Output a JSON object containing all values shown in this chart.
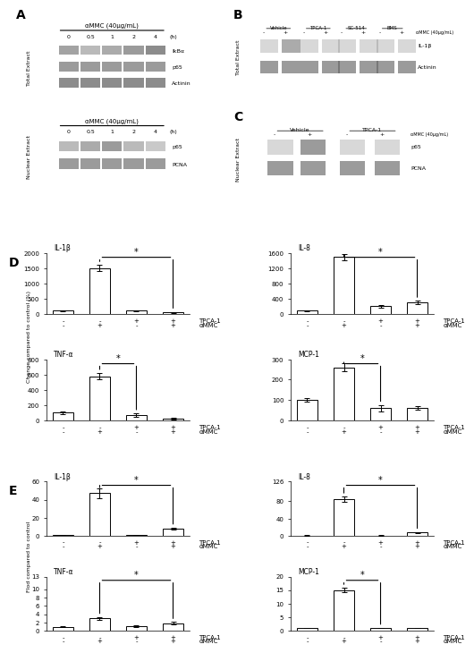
{
  "panel_A": {
    "label": "A",
    "total_extract_label": "Total Extract",
    "nuclear_extract_label": "Nuclear Extract",
    "title_top": "αMMC (40µg/mL)",
    "title_bottom": "αMMC (40µg/mL)",
    "timepoints": [
      "0",
      "0.5",
      "1",
      "2",
      "4"
    ],
    "time_unit": "(h)",
    "bands_top": [
      "IkBα",
      "p65",
      "Actinin"
    ],
    "bands_bottom": [
      "p65",
      "PCNA"
    ]
  },
  "panel_B": {
    "label": "B",
    "title": "Total Extract",
    "conditions": [
      "Vehicle",
      "TPCA-1",
      "SC-514",
      "BMS"
    ],
    "aMMC_label": "αMMC (40µg/mL)",
    "bands": [
      "IL-1β",
      "Actinin"
    ]
  },
  "panel_C": {
    "label": "C",
    "title": "Nuclear Extract",
    "conditions": [
      "Vehicle",
      "TPCA-1"
    ],
    "aMMC_label": "αMMC (40µg/mL)",
    "bands": [
      "p65",
      "PCNA"
    ]
  },
  "panel_D": {
    "label": "D",
    "ylabel": "Change compared to control (%)",
    "subpanels": [
      {
        "title": "IL-1β",
        "ylim": [
          0,
          2000
        ],
        "yticks": [
          0,
          500,
          1000,
          1500,
          2000
        ],
        "bars": [
          100,
          1500,
          100,
          50
        ],
        "errors": [
          20,
          100,
          20,
          15
        ],
        "significance_bar": [
          1,
          3
        ],
        "sig_star": "*"
      },
      {
        "title": "IL-8",
        "ylim": [
          0,
          1600
        ],
        "yticks": [
          0,
          400,
          800,
          1200,
          1600
        ],
        "bars": [
          80,
          1500,
          200,
          300
        ],
        "errors": [
          10,
          80,
          30,
          40
        ],
        "significance_bar": [
          1,
          3
        ],
        "sig_star": "*"
      },
      {
        "title": "TNF-α",
        "ylim": [
          0,
          800
        ],
        "yticks": [
          0,
          200,
          400,
          600,
          800
        ],
        "bars": [
          100,
          580,
          70,
          20
        ],
        "errors": [
          15,
          40,
          20,
          10
        ],
        "significance_bar": [
          1,
          2
        ],
        "sig_star": "*"
      },
      {
        "title": "MCP-1",
        "ylim": [
          0,
          300
        ],
        "yticks": [
          0,
          100,
          200,
          300
        ],
        "bars": [
          100,
          260,
          60,
          60
        ],
        "errors": [
          10,
          20,
          15,
          10
        ],
        "significance_bar": [
          1,
          2
        ],
        "sig_star": "*"
      }
    ],
    "xticklabels": [
      [
        "-",
        "-",
        "+",
        "+"
      ],
      [
        "-",
        "+",
        "-",
        "+"
      ]
    ],
    "xlabel_rows": [
      "TPCA-1",
      "αMMC"
    ]
  },
  "panel_E": {
    "label": "E",
    "ylabel": "Flod compared to control",
    "subpanels": [
      {
        "title": "IL-1β",
        "ylim": [
          0,
          60
        ],
        "yticks": [
          0,
          20,
          40,
          60
        ],
        "bars": [
          1,
          47,
          1,
          8
        ],
        "errors": [
          0.2,
          5,
          0.2,
          1
        ],
        "significance_bar": [
          1,
          3
        ],
        "sig_star": "*"
      },
      {
        "title": "IL-8",
        "ylim": [
          0,
          126
        ],
        "yticks": [
          0,
          40,
          80,
          126
        ],
        "bars": [
          1,
          85,
          1,
          8
        ],
        "errors": [
          0.2,
          6,
          0.2,
          1
        ],
        "significance_bar": [
          1,
          3
        ],
        "sig_star": "*"
      },
      {
        "title": "TNF-α",
        "ylim": [
          0,
          13
        ],
        "yticks": [
          0,
          2,
          4,
          6,
          8,
          10,
          13
        ],
        "bars": [
          1,
          3,
          1.2,
          1.8
        ],
        "errors": [
          0.1,
          0.3,
          0.2,
          0.3
        ],
        "significance_bar": [
          1,
          3
        ],
        "sig_star": "*"
      },
      {
        "title": "MCP-1",
        "ylim": [
          0,
          20
        ],
        "yticks": [
          0,
          5,
          10,
          15,
          20
        ],
        "bars": [
          1,
          15,
          1,
          1
        ],
        "errors": [
          0.1,
          0.8,
          0.1,
          0.1
        ],
        "significance_bar": [
          1,
          2
        ],
        "sig_star": "*"
      }
    ],
    "xticklabels": [
      [
        "-",
        "-",
        "+",
        "+"
      ],
      [
        "-",
        "+",
        "-",
        "+"
      ]
    ],
    "xlabel_rows": [
      "TPCA-1",
      "αMMC"
    ]
  }
}
